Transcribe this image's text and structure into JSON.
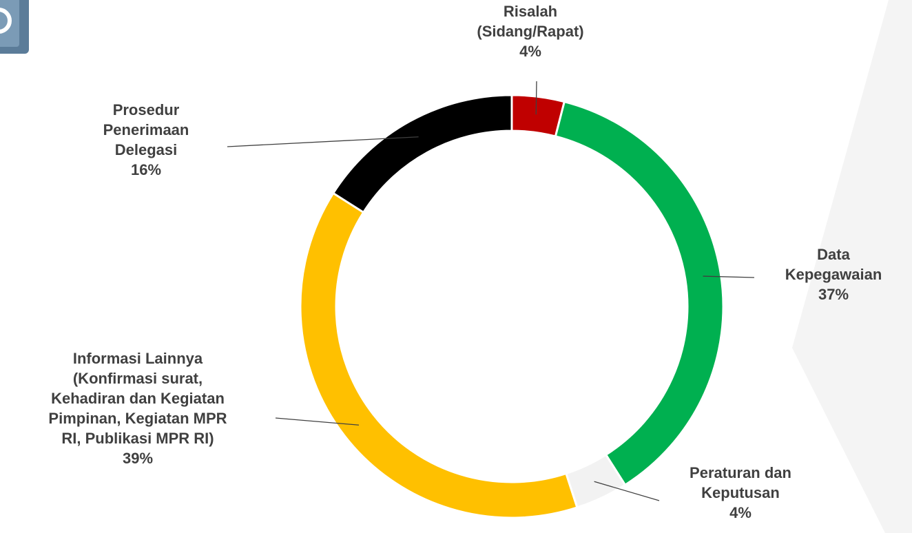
{
  "chart_data": {
    "type": "donut",
    "categories": [
      "Risalah\n(Sidang/Rapat)",
      "Data\nKepegawaian",
      "Peraturan dan\nKeputusan",
      "Informasi Lainnya\n(Konfirmasi surat,\nKehadiran dan Kegiatan\nPimpinan, Kegiatan MPR\nRI, Publikasi MPR RI)",
      "Prosedur\nPenerimaan\nDelegasi"
    ],
    "values": [
      4,
      37,
      4,
      39,
      16
    ],
    "value_labels": [
      "4%",
      "37%",
      "4%",
      "39%",
      "16%"
    ],
    "colors": [
      "#c00000",
      "#00b050",
      "#f2f2f2",
      "#ffc000",
      "#000000"
    ]
  }
}
